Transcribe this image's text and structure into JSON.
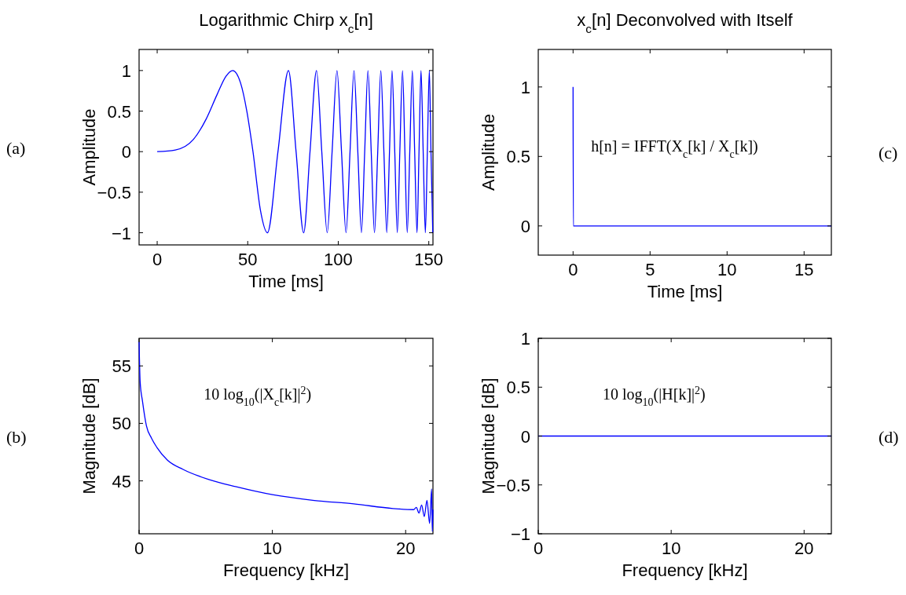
{
  "chart_data": [
    {
      "type": "line",
      "title": "Logarithmic Chirp x$_{c}$[n]",
      "xlabel": "Time [ms]",
      "ylabel": "Amplitude",
      "annotations": [
        "(a)"
      ],
      "color": "#0000ff",
      "x": [
        0,
        10,
        20,
        27,
        33,
        38,
        41.7,
        46,
        49.5,
        52.9,
        57,
        60.9,
        66.7,
        72.5,
        76.7,
        80.9,
        84.4,
        88,
        90.9,
        93.9,
        96.6,
        99.3,
        101.8,
        104.3,
        106.5,
        108.7,
        110.8,
        112.8,
        114.6,
        116.4,
        118.2,
        120,
        121.8,
        123.5,
        125.2,
        126.8,
        128.3,
        129.7,
        131.2,
        132.6,
        134,
        135.5,
        136.8,
        138.1,
        139.5,
        140.9,
        142.2,
        143.5,
        144.6,
        145.7,
        146.9,
        148.1,
        149.2,
        150.3,
        151.2,
        152.2
      ],
      "values": [
        0,
        0.02,
        0.15,
        0.4,
        0.7,
        0.93,
        1,
        0.85,
        0.5,
        0,
        -0.72,
        -1,
        0,
        1,
        0,
        -1,
        0,
        1,
        0,
        -1,
        0,
        1,
        0,
        -1,
        0,
        1,
        0,
        -1,
        0,
        1,
        0,
        -1,
        0,
        1,
        0,
        -1,
        0,
        1,
        0,
        -1,
        0,
        1,
        0,
        -1,
        0,
        1,
        0,
        -1,
        0,
        1,
        0,
        -1,
        0,
        1,
        0,
        -1
      ],
      "xlim": [
        -10,
        152.3
      ],
      "ylim": [
        -1.15,
        1.26
      ],
      "xticks": [
        0,
        50,
        100,
        150
      ],
      "yticks": [
        -1,
        -0.5,
        0,
        0.5,
        1
      ]
    },
    {
      "type": "line",
      "xlabel": "Frequency [kHz]",
      "ylabel": "Magnitude [dB]",
      "annotations": [
        "(b)",
        "10 log$_{10}$(|X$_{c}$[k]|$^{2}$)"
      ],
      "color": "#0000ff",
      "x": [
        0,
        0.08,
        0.26,
        0.55,
        0.94,
        1.34,
        2.13,
        3.3,
        5.28,
        7.24,
        10,
        13.15,
        16.1,
        19.05,
        20.6,
        20.8,
        21,
        21.2,
        21.4,
        21.6,
        21.8,
        21.95,
        22,
        22.05
      ],
      "values": [
        57.1,
        53.6,
        51.9,
        49.8,
        48.7,
        47.9,
        46.8,
        46,
        45.1,
        44.5,
        43.8,
        43.3,
        43,
        42.6,
        42.5,
        42.7,
        42.2,
        42.9,
        41.9,
        43.3,
        41.3,
        44.3,
        40.6,
        42.5
      ],
      "xlim": [
        0,
        22.05
      ],
      "ylim": [
        40.4,
        57.4
      ],
      "xticks": [
        0,
        10,
        20
      ],
      "yticks": [
        45,
        50,
        55
      ]
    },
    {
      "type": "line",
      "title": "x$_{c}$[n] Deconvolved with Itself",
      "xlabel": "Time [ms]",
      "ylabel": "Amplitude",
      "annotations": [
        "(c)",
        "h[n] = IFFT(X$_{c}$[k] / X$_{c}$[k])"
      ],
      "color": "#0000ff",
      "x": [
        0,
        0.02,
        16.77
      ],
      "values": [
        1,
        0,
        0
      ],
      "xlim": [
        -2.26,
        16.77
      ],
      "ylim": [
        -0.21,
        1.27
      ],
      "xticks": [
        0,
        5,
        10,
        15
      ],
      "yticks": [
        0,
        0.5,
        1
      ]
    },
    {
      "type": "line",
      "xlabel": "Frequency [kHz]",
      "ylabel": "Magnitude [dB]",
      "annotations": [
        "(d)",
        "10 log$_{10}$(|H[k]|$^{2}$)"
      ],
      "color": "#0000ff",
      "x": [
        0,
        22.05
      ],
      "values": [
        0,
        0
      ],
      "xlim": [
        0,
        22.05
      ],
      "ylim": [
        -1,
        1
      ],
      "xticks": [
        0,
        10,
        20
      ],
      "yticks": [
        -1,
        -0.5,
        0,
        0.5,
        1
      ]
    }
  ]
}
